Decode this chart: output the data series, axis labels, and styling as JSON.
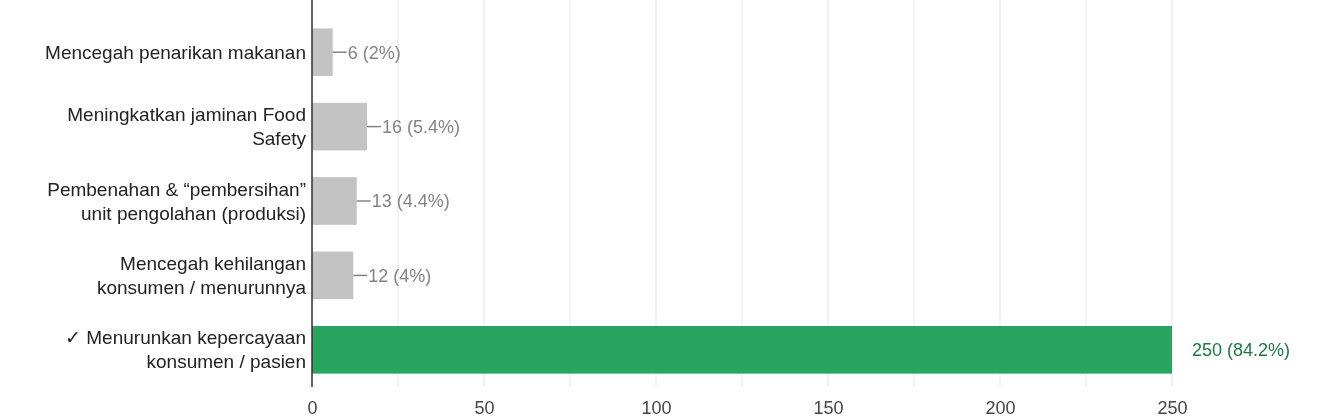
{
  "chart_data": {
    "type": "bar",
    "orientation": "horizontal",
    "categories": [
      "Mencegah penarikan makanan",
      "Meningkatkan jaminan Food Safety",
      "Pembenahan & “pembersihan” unit pengolahan (produksi)",
      "Mencegah kehilangan konsumen / menurunnya",
      "✓ Menurunkan kepercayaan konsumen / pasien"
    ],
    "values": [
      6,
      16,
      13,
      12,
      250
    ],
    "colors": [
      "#c3c3c3",
      "#c3c3c3",
      "#c3c3c3",
      "#c3c3c3",
      "#27a561"
    ],
    "value_labels": [
      "6 (2%)",
      "16 (5.4%)",
      "13 (4.4%)",
      "12 (4%)",
      "250 (84.2%)"
    ],
    "xlim": [
      0,
      250
    ],
    "xticks": [
      0,
      {
        "value": 25,
        "label": null
      },
      50,
      {
        "value": 75,
        "label": null
      },
      100,
      {
        "value": 125,
        "label": null
      },
      150,
      {
        "value": 175,
        "label": null
      },
      200,
      {
        "value": 225,
        "label": null
      },
      250
    ],
    "grid": "x"
  }
}
